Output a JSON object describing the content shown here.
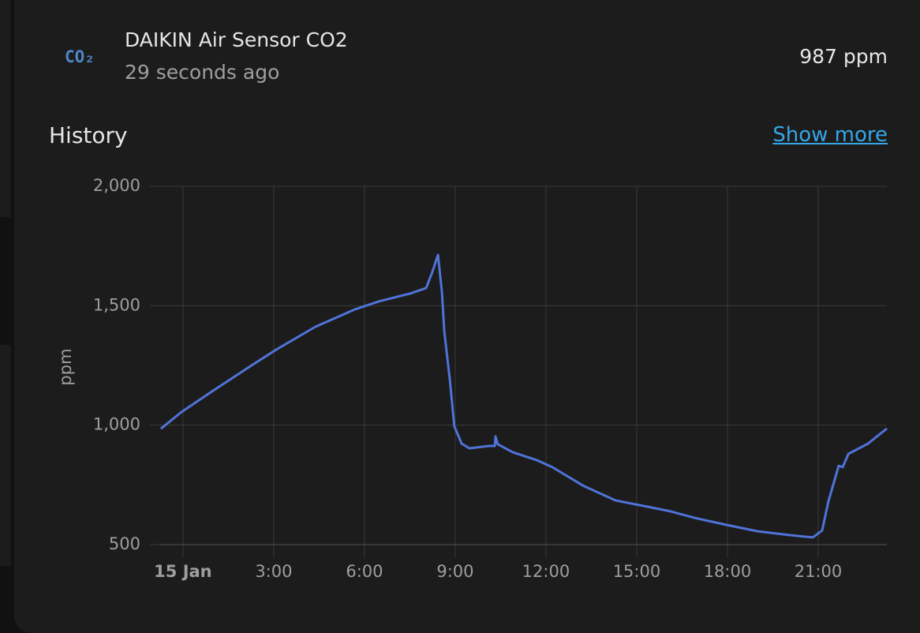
{
  "header": {
    "icon": "CO₂",
    "title": "DAIKIN Air Sensor CO2",
    "subtitle": "29 seconds ago",
    "state": "987 ppm"
  },
  "section": {
    "title": "History",
    "link": "Show more"
  },
  "chart_data": {
    "type": "line",
    "ylabel": "ppm",
    "color": "#4f73d8",
    "grid": true,
    "x": [
      -0.73,
      -0.05,
      0.99,
      2.3,
      3.08,
      4.38,
      5.69,
      6.47,
      7.51,
      8.04,
      8.24,
      8.43,
      8.56,
      8.64,
      8.82,
      8.97,
      9.21,
      9.47,
      10.12,
      10.31,
      10.33,
      10.41,
      10.9,
      11.69,
      12.21,
      13.25,
      14.3,
      15.34,
      16.12,
      16.91,
      17.95,
      19.0,
      20.04,
      20.82,
      21.13,
      21.34,
      21.68,
      21.81,
      22.0,
      22.65,
      23.27
    ],
    "values": [
      985,
      1055,
      1144,
      1253,
      1316,
      1412,
      1485,
      1518,
      1551,
      1574,
      1640,
      1713,
      1557,
      1392,
      1194,
      996,
      923,
      903,
      913,
      913,
      953,
      920,
      887,
      854,
      824,
      745,
      685,
      659,
      639,
      612,
      583,
      556,
      540,
      530,
      559,
      682,
      830,
      824,
      880,
      923,
      986
    ],
    "xlim": [
      -0.78,
      23.27
    ],
    "xticks": [
      {
        "value": 0,
        "label": "15 Jan"
      },
      {
        "value": 3,
        "label": "3:00"
      },
      {
        "value": 6,
        "label": "6:00"
      },
      {
        "value": 9,
        "label": "9:00"
      },
      {
        "value": 12,
        "label": "12:00"
      },
      {
        "value": 15,
        "label": "15:00"
      },
      {
        "value": 18,
        "label": "18:00"
      },
      {
        "value": 21,
        "label": "21:00"
      }
    ],
    "ylim": [
      500,
      2000
    ],
    "yticks": [
      500,
      {
        "value": 1000,
        "label": "1,000"
      },
      {
        "value": 1500,
        "label": "1,500"
      },
      {
        "value": 2000,
        "label": "2,000"
      }
    ]
  }
}
